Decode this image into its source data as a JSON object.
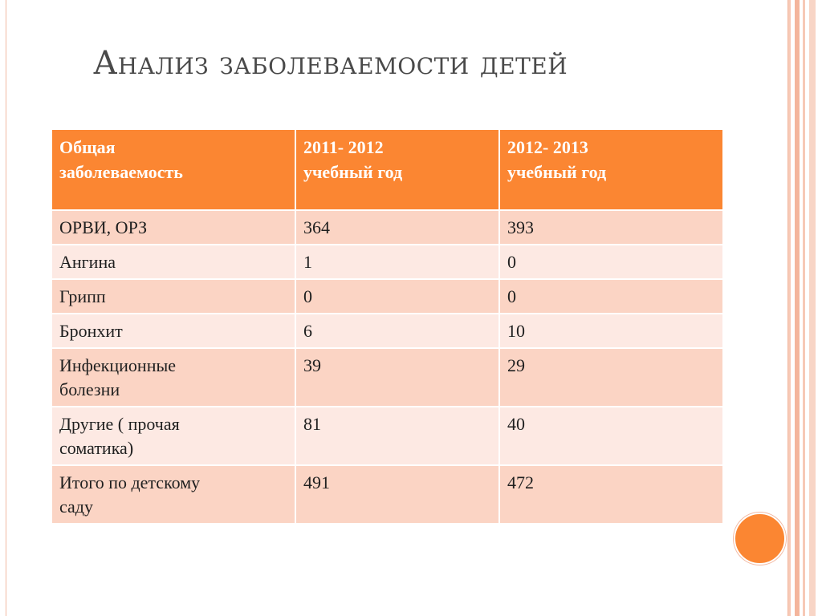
{
  "title": "Анализ заболеваемости детей",
  "table": {
    "header": [
      "Общая\nзаболеваемость",
      "2011- 2012\nучебный год",
      "2012- 2013\nучебный год"
    ],
    "rows": [
      [
        "ОРВИ, ОРЗ",
        "364",
        "393"
      ],
      [
        "Ангина",
        "1",
        "0"
      ],
      [
        "Грипп",
        "0",
        "0"
      ],
      [
        "Бронхит",
        "6",
        "10"
      ],
      [
        "Инфекционные\nболезни",
        "39",
        "29"
      ],
      [
        "Другие ( прочая\nсоматика)",
        "81",
        "40"
      ],
      [
        "Итого по детскому\nсаду",
        "491",
        "472"
      ]
    ]
  },
  "colors": {
    "accent": "#fb8632",
    "row_odd": "#fbd4c4",
    "row_even": "#fde9e3",
    "title_text": "#4a4a4a"
  }
}
